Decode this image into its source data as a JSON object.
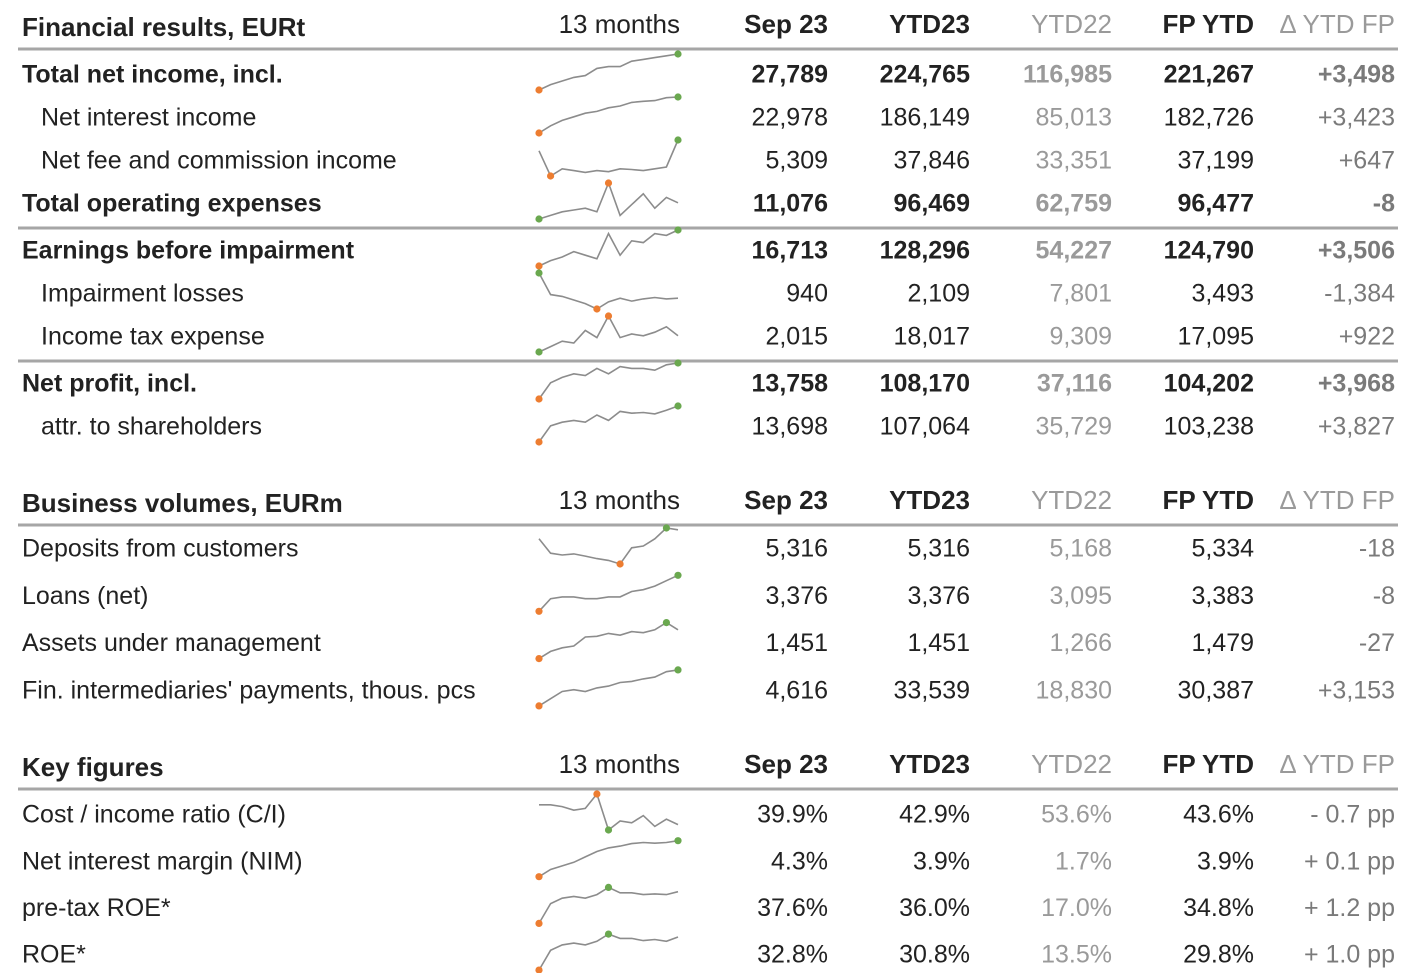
{
  "sections": [
    {
      "title": "Financial results, EURt",
      "columns": [
        "13 months",
        "Sep 23",
        "YTD23",
        "YTD22",
        "FP YTD",
        "Δ YTD FP"
      ],
      "rows": [
        {
          "label": "Total net income, incl.",
          "bold": true,
          "values": [
            "27,789",
            "224,765",
            "116,985",
            "221,267",
            "+3,498"
          ],
          "spark": [
            0,
            15,
            25,
            35,
            40,
            60,
            65,
            65,
            80,
            85,
            90,
            95,
            100
          ],
          "high_color": "#6aa84f",
          "low_color": "#ed7d31"
        },
        {
          "label": "Net interest income",
          "indent": true,
          "values": [
            "22,978",
            "186,149",
            "85,013",
            "182,726",
            "+3,423"
          ],
          "spark": [
            0,
            20,
            35,
            45,
            55,
            60,
            70,
            75,
            85,
            88,
            90,
            98,
            100
          ],
          "high_color": "#6aa84f",
          "low_color": "#ed7d31"
        },
        {
          "label": "Net fee and commission income",
          "indent": true,
          "values": [
            "5,309",
            "37,846",
            "33,351",
            "37,199",
            "+647"
          ],
          "spark": [
            70,
            0,
            20,
            15,
            10,
            15,
            12,
            20,
            18,
            15,
            20,
            25,
            100
          ],
          "high_color": "#6aa84f",
          "low_color": "#ed7d31"
        },
        {
          "label": "Total operating expenses",
          "bold": true,
          "divider_after": true,
          "values": [
            "11,076",
            "96,469",
            "62,759",
            "96,477",
            "-8"
          ],
          "spark": [
            0,
            10,
            20,
            25,
            30,
            20,
            100,
            10,
            40,
            70,
            30,
            60,
            45
          ],
          "high_color": "#ed7d31",
          "low_color": "#6aa84f"
        },
        {
          "label": "Earnings before impairment",
          "bold": true,
          "values": [
            "16,713",
            "128,296",
            "54,227",
            "124,790",
            "+3,506"
          ],
          "spark": [
            0,
            15,
            25,
            40,
            30,
            20,
            90,
            30,
            70,
            65,
            90,
            85,
            100
          ],
          "high_color": "#6aa84f",
          "low_color": "#ed7d31"
        },
        {
          "label": "Impairment losses",
          "indent": true,
          "values": [
            "940",
            "2,109",
            "7,801",
            "3,493",
            "-1,384"
          ],
          "spark": [
            100,
            40,
            35,
            25,
            15,
            0,
            20,
            30,
            22,
            28,
            32,
            28,
            30
          ],
          "high_color": "#6aa84f",
          "low_color": "#ed7d31"
        },
        {
          "label": "Income tax expense",
          "indent": true,
          "divider_after": true,
          "values": [
            "2,015",
            "18,017",
            "9,309",
            "17,095",
            "+922"
          ],
          "spark": [
            0,
            15,
            30,
            25,
            60,
            40,
            100,
            40,
            50,
            45,
            55,
            70,
            45
          ],
          "high_color": "#ed7d31",
          "low_color": "#6aa84f"
        },
        {
          "label": "Net profit, incl.",
          "bold": true,
          "values": [
            "13,758",
            "108,170",
            "37,116",
            "104,202",
            "+3,968"
          ],
          "spark": [
            0,
            45,
            60,
            70,
            65,
            85,
            70,
            90,
            85,
            85,
            80,
            95,
            100
          ],
          "high_color": "#6aa84f",
          "low_color": "#ed7d31"
        },
        {
          "label": "attr. to shareholders",
          "indent": true,
          "values": [
            "13,698",
            "107,064",
            "35,729",
            "103,238",
            "+3,827"
          ],
          "spark": [
            0,
            45,
            55,
            60,
            55,
            75,
            60,
            85,
            80,
            82,
            78,
            88,
            100
          ],
          "high_color": "#6aa84f",
          "low_color": "#ed7d31"
        }
      ]
    },
    {
      "title": "Business volumes, EURm",
      "columns": [
        "13 months",
        "Sep 23",
        "YTD23",
        "YTD22",
        "FP YTD",
        "Δ YTD FP"
      ],
      "rows": [
        {
          "label": "Deposits from customers",
          "values": [
            "5,316",
            "5,316",
            "5,168",
            "5,334",
            "-18"
          ],
          "spark": [
            70,
            30,
            25,
            28,
            22,
            15,
            10,
            0,
            45,
            50,
            70,
            100,
            95
          ],
          "high_color": "#6aa84f",
          "low_color": "#ed7d31"
        },
        {
          "label": "Loans (net)",
          "values": [
            "3,376",
            "3,376",
            "3,095",
            "3,383",
            "-8"
          ],
          "spark": [
            0,
            35,
            40,
            40,
            35,
            35,
            40,
            40,
            55,
            60,
            70,
            85,
            100
          ],
          "high_color": "#6aa84f",
          "low_color": "#ed7d31"
        },
        {
          "label": "Assets under management",
          "values": [
            "1,451",
            "1,451",
            "1,266",
            "1,479",
            "-27"
          ],
          "spark": [
            0,
            20,
            30,
            35,
            60,
            62,
            70,
            65,
            75,
            72,
            80,
            100,
            80
          ],
          "high_color": "#6aa84f",
          "low_color": "#ed7d31"
        },
        {
          "label": "Fin. intermediaries' payments, thous. pcs",
          "values": [
            "4,616",
            "33,539",
            "18,830",
            "30,387",
            "+3,153"
          ],
          "spark": [
            0,
            20,
            40,
            45,
            40,
            50,
            55,
            65,
            68,
            75,
            80,
            95,
            100
          ],
          "high_color": "#6aa84f",
          "low_color": "#ed7d31"
        }
      ]
    },
    {
      "title": "Key figures",
      "columns": [
        "13 months",
        "Sep 23",
        "YTD23",
        "YTD22",
        "FP YTD",
        "Δ YTD FP"
      ],
      "rows": [
        {
          "label": "Cost / income ratio (C/I)",
          "values": [
            "39.9%",
            "42.9%",
            "53.6%",
            "43.6%",
            "- 0.7 pp"
          ],
          "spark": [
            70,
            70,
            65,
            55,
            60,
            100,
            0,
            25,
            20,
            40,
            10,
            30,
            15
          ],
          "high_color": "#ed7d31",
          "low_color": "#6aa84f"
        },
        {
          "label": "Net interest margin (NIM)",
          "values": [
            "4.3%",
            "3.9%",
            "1.7%",
            "3.9%",
            "+ 0.1 pp"
          ],
          "spark": [
            0,
            20,
            30,
            40,
            55,
            70,
            80,
            85,
            92,
            95,
            93,
            95,
            100
          ],
          "high_color": "#6aa84f",
          "low_color": "#ed7d31"
        },
        {
          "label": "pre-tax ROE*",
          "values": [
            "37.6%",
            "36.0%",
            "17.0%",
            "34.8%",
            "+ 1.2 pp"
          ],
          "spark": [
            0,
            55,
            70,
            75,
            70,
            80,
            100,
            85,
            85,
            80,
            82,
            80,
            88
          ],
          "high_color": "#6aa84f",
          "low_color": "#ed7d31"
        },
        {
          "label": "ROE*",
          "values": [
            "32.8%",
            "30.8%",
            "13.5%",
            "29.8%",
            "+ 1.0 pp"
          ],
          "spark": [
            0,
            55,
            70,
            75,
            70,
            80,
            100,
            88,
            88,
            82,
            85,
            80,
            92
          ],
          "high_color": "#6aa84f",
          "low_color": "#ed7d31"
        }
      ]
    }
  ]
}
